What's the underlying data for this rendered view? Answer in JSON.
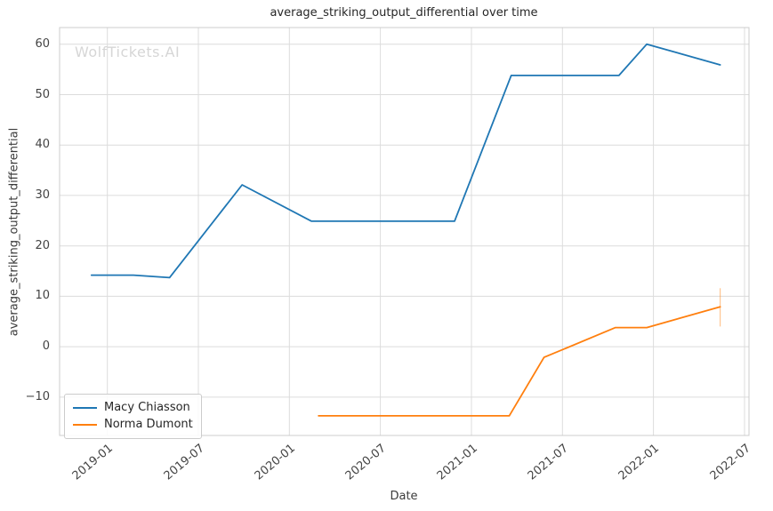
{
  "watermark": "WolfTickets.AI",
  "colors": {
    "grid": "#dcdcdc",
    "spine": "#cccccc",
    "title_text": "#262626",
    "tick_text": "#444444",
    "watermark_text": "#d6d6d6",
    "series_blue": "#1f77b4",
    "series_orange": "#ff7f0e"
  },
  "chart_data": {
    "type": "line",
    "title": "average_striking_output_differential over time",
    "xlabel": "Date",
    "ylabel": "average_striking_output_differential",
    "grid": true,
    "legend_position": "lower left",
    "x_ticks": [
      "2019-01",
      "2019-07",
      "2020-01",
      "2020-07",
      "2021-01",
      "2021-07",
      "2022-01",
      "2022-07"
    ],
    "y_ticks": [
      -10,
      0,
      10,
      20,
      30,
      40,
      50,
      60
    ],
    "y_tick_labels": [
      "−10",
      "0",
      "10",
      "20",
      "30",
      "40",
      "50",
      "60"
    ],
    "xlim": [
      "2018-09-27",
      "2022-07-10"
    ],
    "ylim": [
      -17.6,
      63.3
    ],
    "series": [
      {
        "name": "Macy Chiasson",
        "color": "#1f77b4",
        "points": [
          [
            "2018-11-30",
            14.2
          ],
          [
            "2019-02-23",
            14.2
          ],
          [
            "2019-05-04",
            13.7
          ],
          [
            "2019-09-28",
            32.1
          ],
          [
            "2020-02-15",
            24.9
          ],
          [
            "2020-11-28",
            24.9
          ],
          [
            "2021-03-20",
            53.8
          ],
          [
            "2021-10-23",
            53.8
          ],
          [
            "2021-12-18",
            60.0
          ],
          [
            "2022-05-13",
            55.9
          ]
        ]
      },
      {
        "name": "Norma Dumont",
        "color": "#ff7f0e",
        "points": [
          [
            "2020-02-29",
            -13.7
          ],
          [
            "2021-03-16",
            -13.7
          ],
          [
            "2021-05-25",
            -2.1
          ],
          [
            "2021-10-16",
            3.8
          ],
          [
            "2021-12-18",
            3.8
          ],
          [
            "2022-05-13",
            7.9
          ]
        ],
        "error_bars": [
          {
            "x": "2022-05-13",
            "lo": 4.0,
            "hi": 11.6
          }
        ]
      }
    ]
  }
}
